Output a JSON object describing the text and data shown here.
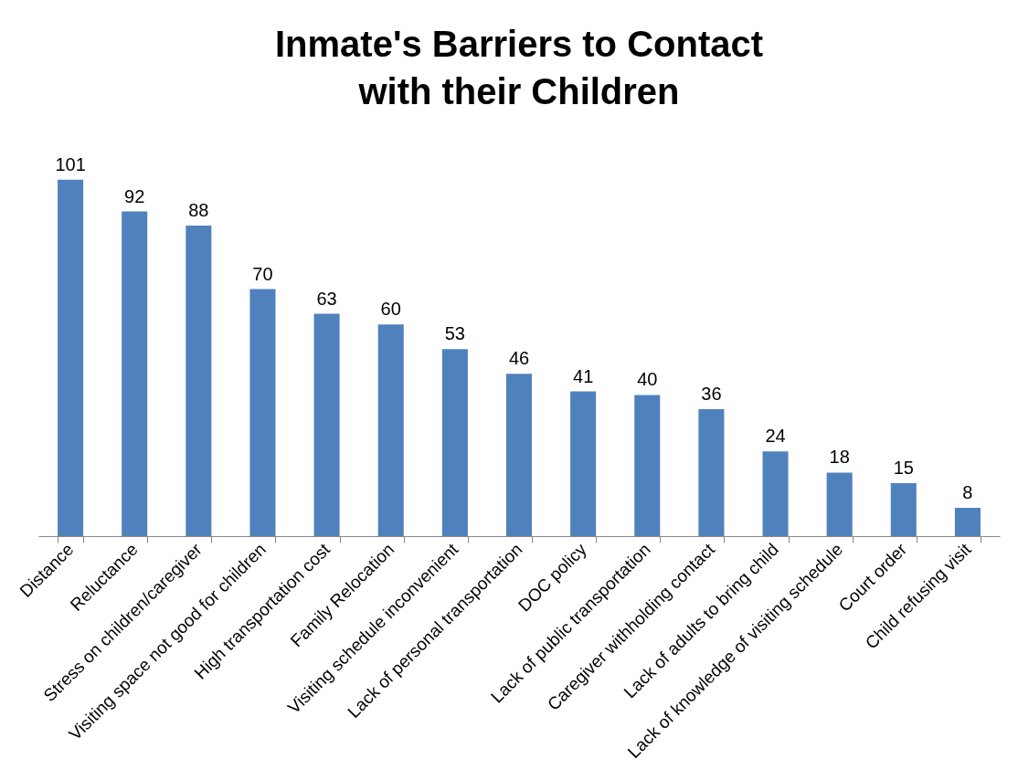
{
  "chart_data": {
    "type": "bar",
    "title": "Inmate's Barriers to Contact with their Children",
    "categories": [
      "Distance",
      "Reluctance",
      "Stress on children/caregiver",
      "Visiting space not good for children",
      "High transportation cost",
      "Family Relocation",
      "Visiting schedule inconvenient",
      "Lack of personal transportation",
      "DOC policy",
      "Lack of public transportation",
      "Caregiver withholding contact",
      "Lack of adults to bring child",
      "Lack of knowledge of visiting schedule",
      "Court order",
      "Child refusing visit"
    ],
    "values": [
      101,
      92,
      88,
      70,
      63,
      60,
      53,
      46,
      41,
      40,
      36,
      24,
      18,
      15,
      8
    ],
    "color": "#4f81bd",
    "data_labels": true
  }
}
